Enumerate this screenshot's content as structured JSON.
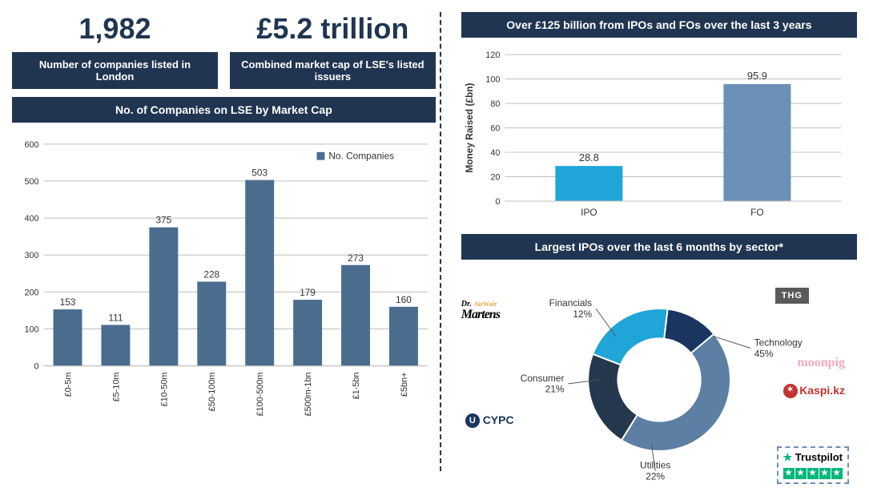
{
  "stats": {
    "companies": {
      "value": "1,982",
      "label": "Number of companies listed in London"
    },
    "marketcap": {
      "value": "£5.2 trillion",
      "label": "Combined market cap of LSE's listed issuers"
    }
  },
  "bar_chart": {
    "title": "No. of Companies on LSE by Market Cap",
    "legend": "No. Companies",
    "categories": [
      "£0-5m",
      "£5-10m",
      "£10-50m",
      "£50-100m",
      "£100-500m",
      "£500m-1bn",
      "£1-5bn",
      "£5bn+"
    ],
    "values": [
      153,
      111,
      375,
      228,
      503,
      179,
      273,
      160
    ],
    "bar_color": "#4a6d8f",
    "grid_color": "#bfbfbf",
    "text_color": "#333333",
    "ymax": 600,
    "ytick_step": 100,
    "label_fontsize": 11,
    "value_fontsize": 12
  },
  "money_chart": {
    "title": "Over £125 billion from IPOs and FOs over the last 3 years",
    "ylabel": "Money Raised (£bn)",
    "categories": [
      "IPO",
      "FO"
    ],
    "values": [
      28.8,
      95.9
    ],
    "bar_colors": [
      "#1fa5d8",
      "#6b90b8"
    ],
    "ymax": 120,
    "ytick_step": 20,
    "grid_color": "#bfbfbf",
    "text_color": "#333333",
    "value_fontsize": 13
  },
  "donut": {
    "title": "Largest IPOs over the last 6 months by sector*",
    "slices": [
      {
        "label": "Technology",
        "pct": 45,
        "color": "#5c7fa3"
      },
      {
        "label": "Utilities",
        "pct": 22,
        "color": "#25374d"
      },
      {
        "label": "Consumer",
        "pct": 21,
        "color": "#1fa5d8"
      },
      {
        "label": "Financials",
        "pct": 12,
        "color": "#1a3560"
      }
    ],
    "start_angle_deg": -40,
    "inner_ratio": 0.58
  },
  "logos": {
    "thg": "THG",
    "moonpig": "moonpig",
    "kaspi": "Kaspi.kz",
    "trustpilot": "Trustpilot",
    "cypc": "CYPC",
    "martens": "Dr. Martens"
  }
}
